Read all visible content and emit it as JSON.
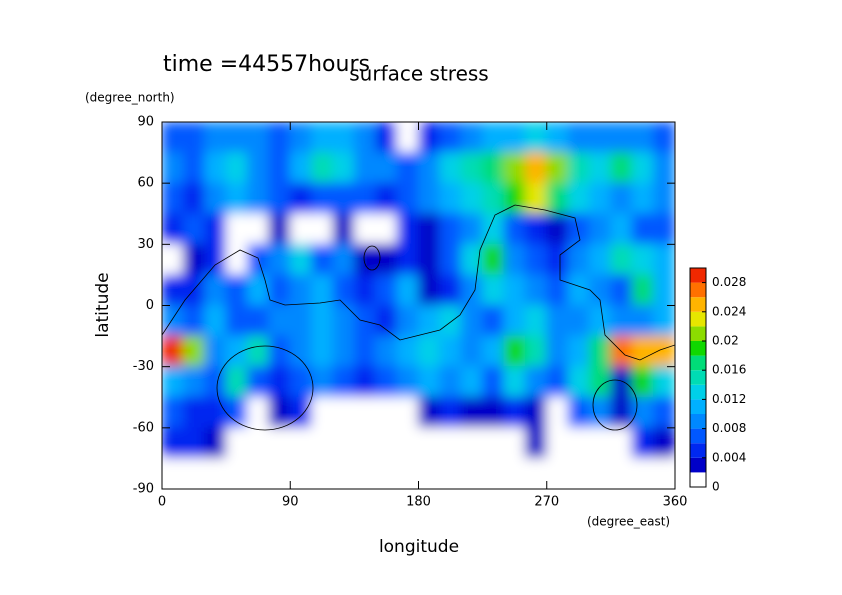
{
  "chart_data": {
    "type": "contour",
    "title": "surface stress",
    "subtitle": "time =44557hours",
    "x_label": "longitude",
    "x_unit": "(degree_east)",
    "y_label": "latitude",
    "y_unit": "(degree_north)",
    "xlim": [
      0,
      360
    ],
    "ylim": [
      -90,
      90
    ],
    "xticks": [
      0,
      90,
      180,
      270,
      360
    ],
    "yticks": [
      -90,
      -60,
      -30,
      0,
      30,
      60,
      90
    ],
    "x": [
      7.5,
      22.5,
      37.5,
      52.5,
      67.5,
      82.5,
      97.5,
      112.5,
      127.5,
      142.5,
      157.5,
      172.5,
      187.5,
      202.5,
      217.5,
      232.5,
      247.5,
      262.5,
      277.5,
      292.5,
      307.5,
      322.5,
      337.5,
      352.5
    ],
    "y": [
      82.5,
      67.5,
      52.5,
      37.5,
      22.5,
      7.5,
      -7.5,
      -22.5,
      -37.5,
      -52.5,
      -67.5,
      -82.5
    ],
    "z": [
      [
        0.006,
        0.007,
        0.008,
        0.009,
        0.008,
        0.007,
        0.009,
        0.011,
        0.01,
        0.008,
        0.005,
        0.001,
        0.004,
        0.007,
        0.009,
        0.01,
        0.011,
        0.012,
        0.011,
        0.009,
        0.008,
        0.009,
        0.008,
        0.007
      ],
      [
        0.008,
        0.006,
        0.01,
        0.012,
        0.009,
        0.007,
        0.01,
        0.014,
        0.012,
        0.009,
        0.008,
        0.007,
        0.009,
        0.012,
        0.014,
        0.016,
        0.02,
        0.024,
        0.02,
        0.014,
        0.012,
        0.016,
        0.012,
        0.009
      ],
      [
        0.006,
        0.005,
        0.008,
        0.01,
        0.008,
        0.006,
        0.004,
        0.006,
        0.007,
        0.006,
        0.005,
        0.006,
        0.008,
        0.01,
        0.012,
        0.014,
        0.018,
        0.022,
        0.016,
        0.012,
        0.01,
        0.008,
        0.01,
        0.008
      ],
      [
        0.004,
        0.006,
        0.004,
        0.001,
        0.001,
        0.003,
        0.001,
        0.001,
        0.003,
        0.001,
        0.001,
        0.004,
        0.003,
        0.006,
        0.008,
        0.012,
        0.006,
        0.004,
        0.002,
        0.006,
        0.008,
        0.01,
        0.007,
        0.006
      ],
      [
        0.001,
        0.002,
        0.005,
        0.001,
        0.006,
        0.008,
        0.012,
        0.006,
        0.008,
        0.003,
        0.002,
        0.004,
        0.002,
        0.006,
        0.012,
        0.018,
        0.008,
        0.006,
        0.004,
        0.008,
        0.01,
        0.014,
        0.012,
        0.01
      ],
      [
        0.005,
        0.004,
        0.008,
        0.006,
        0.01,
        0.006,
        0.008,
        0.01,
        0.006,
        0.004,
        0.006,
        0.01,
        0.002,
        0.004,
        0.008,
        0.012,
        0.01,
        0.008,
        0.006,
        0.01,
        0.008,
        0.006,
        0.016,
        0.01
      ],
      [
        0.008,
        0.006,
        0.01,
        0.007,
        0.006,
        0.008,
        0.008,
        0.01,
        0.008,
        0.006,
        0.004,
        0.008,
        0.01,
        0.012,
        0.008,
        0.006,
        0.01,
        0.012,
        0.008,
        0.008,
        0.01,
        0.008,
        0.008,
        0.01
      ],
      [
        0.028,
        0.02,
        0.008,
        0.01,
        0.014,
        0.006,
        0.008,
        0.01,
        0.008,
        0.006,
        0.008,
        0.01,
        0.012,
        0.01,
        0.008,
        0.01,
        0.018,
        0.014,
        0.008,
        0.01,
        0.016,
        0.026,
        0.024,
        0.024
      ],
      [
        0.01,
        0.008,
        0.006,
        0.014,
        0.006,
        0.004,
        0.006,
        0.008,
        0.006,
        0.004,
        0.006,
        0.008,
        0.01,
        0.008,
        0.01,
        0.006,
        0.012,
        0.008,
        0.006,
        0.012,
        0.016,
        0.002,
        0.018,
        0.012
      ],
      [
        0.006,
        0.005,
        0.004,
        0.007,
        0.001,
        0.002,
        0.004,
        0.001,
        0.001,
        0.001,
        0.001,
        0.001,
        0.002,
        0.004,
        0.002,
        0.003,
        0.004,
        0.002,
        0.001,
        0.006,
        0.008,
        0.003,
        0.008,
        0.006
      ],
      [
        0.004,
        0.005,
        0.002,
        0.001,
        0.001,
        0.001,
        0.001,
        0.001,
        0.001,
        0.001,
        0.001,
        0.001,
        0.001,
        0.001,
        0.001,
        0.001,
        0.001,
        0.002,
        0.001,
        0.001,
        0.001,
        0.001,
        0.004,
        0.003
      ],
      [
        0.001,
        0.001,
        0.001,
        0.001,
        0.001,
        0.001,
        0.001,
        0.001,
        0.001,
        0.001,
        0.001,
        0.001,
        0.001,
        0.001,
        0.001,
        0.001,
        0.001,
        0.001,
        0.001,
        0.001,
        0.001,
        0.001,
        0.001,
        0.001
      ]
    ],
    "levels": [
      0,
      0.002,
      0.004,
      0.006,
      0.008,
      0.01,
      0.012,
      0.014,
      0.016,
      0.018,
      0.02,
      0.022,
      0.024,
      0.026,
      0.028,
      0.03
    ],
    "colors": [
      "#ffffff",
      "#0000c8",
      "#0028f0",
      "#0058ff",
      "#0088ff",
      "#00b0ff",
      "#00d0e8",
      "#00dcb4",
      "#00dc78",
      "#10d800",
      "#8cdc00",
      "#e6e600",
      "#ffb400",
      "#ff7000",
      "#f02800"
    ],
    "cticks": [
      0,
      0.004,
      0.008,
      0.012,
      0.016,
      0.02,
      0.024,
      0.028
    ]
  }
}
